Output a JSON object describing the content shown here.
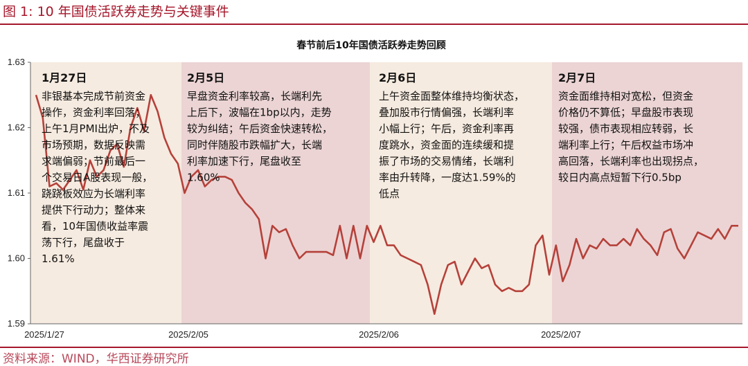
{
  "figure_title": "图 1:  10 年国债活跃券走势与关键事件",
  "source": "资料来源：WIND，华西证券研究所",
  "colors": {
    "accent": "#a5162a",
    "line": "#b5413a",
    "panel_light": "#f6ebe0",
    "panel_dark": "#ecd4d4"
  },
  "chart_data": {
    "type": "line",
    "title": "春节前后10年国债活跃券走势回顾",
    "xlabel": "",
    "ylabel": "",
    "ylim": [
      1.59,
      1.63
    ],
    "yticks": [
      "1.63",
      "1.62",
      "1.61",
      "1.60",
      "1.59"
    ],
    "xticks": [
      "2025/1/27",
      "2025/2/05",
      "2025/2/06",
      "2025/2/07"
    ],
    "grid": false,
    "legend": "none",
    "series": [
      {
        "values": [
          1.625,
          1.6215,
          1.611,
          1.6115,
          1.6105,
          1.612,
          1.6135,
          1.6105,
          1.615,
          1.6125,
          1.6135,
          1.6165,
          1.6175,
          1.614,
          1.62,
          1.623,
          1.6195,
          1.625,
          1.6225,
          1.6185,
          1.616,
          1.6145,
          1.61,
          1.6125,
          1.6135,
          1.611,
          1.612,
          1.6125,
          1.6125,
          1.612,
          1.61,
          1.6085,
          1.6075,
          1.606,
          1.6,
          1.605,
          1.604,
          1.6045,
          1.602,
          1.6,
          1.601,
          1.601,
          1.601,
          1.601,
          1.6005,
          1.605,
          1.6,
          1.605,
          1.6,
          1.605,
          1.6025,
          1.605,
          1.602,
          1.602,
          1.6005,
          1.6,
          1.5995,
          1.599,
          1.596,
          1.5915,
          1.596,
          1.599,
          1.5995,
          1.596,
          1.598,
          1.6,
          1.5985,
          1.599,
          1.596,
          1.595,
          1.5955,
          1.595,
          1.595,
          1.596,
          1.602,
          1.6035,
          1.5975,
          1.602,
          1.5965,
          1.599,
          1.603,
          1.6,
          1.602,
          1.6015,
          1.603,
          1.602,
          1.602,
          1.603,
          1.602,
          1.6045,
          1.603,
          1.602,
          1.6005,
          1.604,
          1.6045,
          1.6015,
          1.6,
          1.602,
          1.604,
          1.6035,
          1.603,
          1.6045,
          1.603,
          1.605,
          1.605
        ]
      }
    ],
    "annotations": [
      {
        "date": "1月27日",
        "lines": [
          "非银基本完成节前资金",
          "操作，资金利率回落；",
          "上午1月PMI出炉，不及",
          "市场预期，数据反映需",
          "求端偏弱；节前最后一",
          "个交易日A股表现一般，",
          "跷跷板效应为长端利率",
          "提供下行动力；整体来",
          "看，10年国债收益率震",
          "荡下行，尾盘收于",
          "1.61%"
        ]
      },
      {
        "date": "2月5日",
        "lines": [
          "早盘资金利率较高，长端利先",
          "上后下，波幅在1bp以内，走势",
          "较为纠结；午后资金快速转松，",
          "同时伴随股市跌幅扩大，长端",
          "利率加速下行，尾盘收至",
          "1.60%"
        ]
      },
      {
        "date": "2月6日",
        "lines": [
          "上午资金面整体维持均衡状态，",
          "叠加股市行情偏强，长端利率",
          "小幅上行；午后，资金利率再",
          "度跳水，资金面的连续缓和提",
          "振了市场的交易情绪，长端利",
          "率由升转降，一度达1.59%的",
          "低点"
        ]
      },
      {
        "date": "2月7日",
        "lines": [
          "资金面维持相对宽松，但资金",
          "价格仍不算低；早盘股市表现",
          "较强，债市表现相应转弱，长",
          "端利率上行；午后权益市场冲",
          "高回落，长端利率也出现拐点，",
          "较日内高点短暂下行0.5bp"
        ]
      }
    ]
  }
}
